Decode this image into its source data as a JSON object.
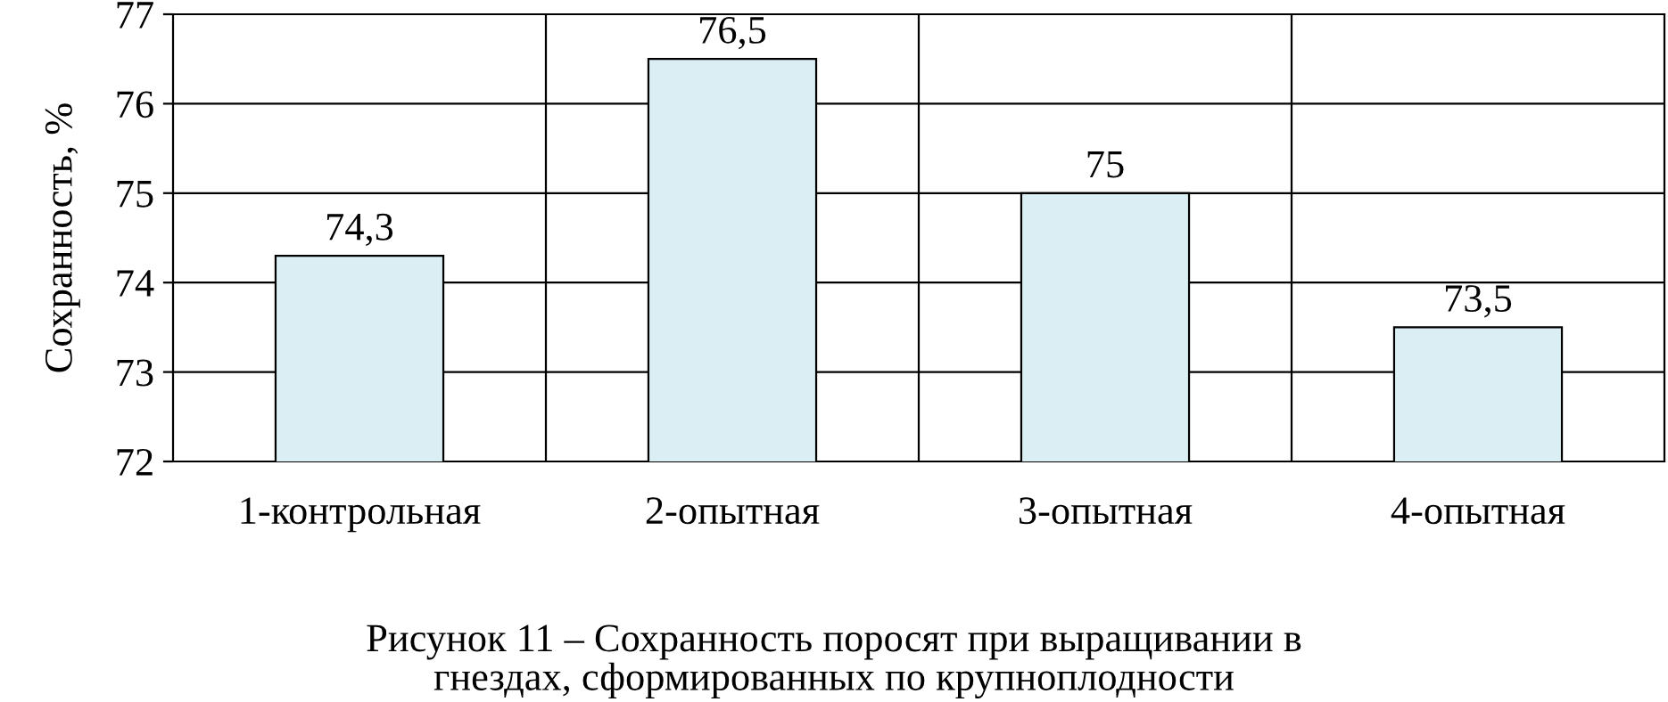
{
  "chart_data": {
    "type": "bar",
    "ylabel": "Сохранность, %",
    "categories": [
      "1-контрольная",
      "2-опытная",
      "3-опытная",
      "4-опытная"
    ],
    "values": [
      74.3,
      76.5,
      75,
      73.5
    ],
    "value_labels": [
      "74,3",
      "76,5",
      "75",
      "73,5"
    ],
    "color": "#daeef3",
    "ylim": [
      72,
      77
    ],
    "yticks": [
      72,
      73,
      74,
      75,
      76,
      77
    ],
    "grid": true,
    "annotations": [
      "Рисунок 11 – Сохранность поросят при выращивании в\nгнездах, сформированных по крупноплодности"
    ]
  }
}
